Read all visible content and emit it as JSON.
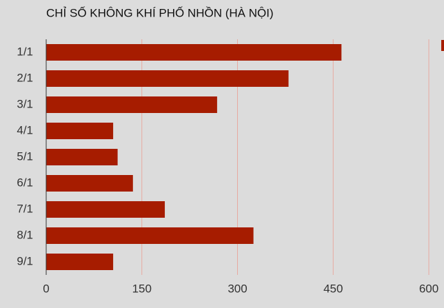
{
  "chart_data": {
    "type": "bar",
    "orientation": "horizontal",
    "title": "CHỈ SỐ KHÔNG KHÍ PHỐ NHỒN (HÀ NỘI)",
    "categories": [
      "1/1",
      "2/1",
      "3/1",
      "4/1",
      "5/1",
      "6/1",
      "7/1",
      "8/1",
      "9/1"
    ],
    "values": [
      463,
      380,
      268,
      105,
      112,
      136,
      186,
      325,
      105
    ],
    "color": "#a61c00",
    "xlim": [
      0,
      600
    ],
    "xticks": [
      0,
      150,
      300,
      450,
      600
    ],
    "grid": true
  }
}
